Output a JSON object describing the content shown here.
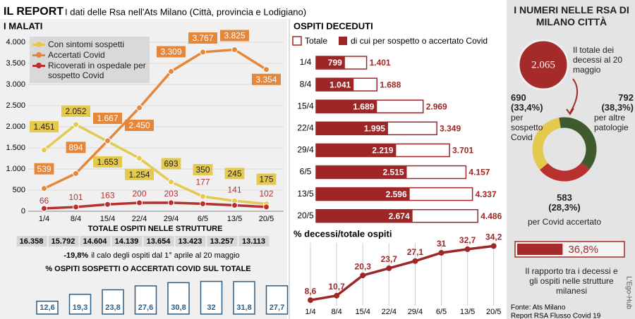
{
  "header": {
    "title": "IL REPORT",
    "subtitle": "I dati delle Rsa nell'Ats Milano (Città, provincia e Lodigiano)"
  },
  "chart_data": [
    {
      "type": "line",
      "title": "I MALATI",
      "categories": [
        "1/4",
        "8/4",
        "15/4",
        "22/4",
        "29/4",
        "6/5",
        "13/5",
        "20/5"
      ],
      "series": [
        {
          "name": "Con sintomi sospetti",
          "color": "#e3c94e",
          "values": [
            1451,
            2052,
            1653,
            1254,
            693,
            350,
            245,
            175
          ],
          "value_labels": [
            "1.451",
            "2.052",
            "1.653",
            "1.254",
            "693",
            "350",
            "245",
            "175"
          ]
        },
        {
          "name": "Accertati Covid",
          "color": "#e5873a",
          "values": [
            539,
            894,
            1667,
            2450,
            3309,
            3767,
            3825,
            3354
          ],
          "value_labels": [
            "539",
            "894",
            "1.667",
            "2.450",
            "3.309",
            "3.767",
            "3.825",
            "3.354"
          ]
        },
        {
          "name": "Ricoverati in ospedale per sospetto Covid",
          "color": "#b8312f",
          "values": [
            66,
            101,
            163,
            200,
            203,
            177,
            141,
            102
          ],
          "value_labels": [
            "66",
            "101",
            "163",
            "200",
            "203",
            "177",
            "141",
            "102"
          ]
        }
      ],
      "ylim": [
        0,
        4000
      ],
      "yticks": [
        0,
        500,
        {
          "value": 1000,
          "label": "1.000"
        },
        {
          "value": 1500,
          "label": "1.500"
        },
        {
          "value": 2000,
          "label": "2.000"
        },
        {
          "value": 2500,
          "label": "2.500"
        },
        {
          "value": 3000,
          "label": "3.000"
        },
        {
          "value": 3500,
          "label": "3.500"
        },
        {
          "value": 4000,
          "label": "4.000"
        }
      ],
      "grid": true
    },
    {
      "type": "table",
      "title": "TOTALE OSPITI NELLE STRUTTURE",
      "values": [
        16358,
        15792,
        14604,
        14139,
        13654,
        13423,
        13257,
        13113
      ],
      "value_labels": [
        "16.358",
        "15.792",
        "14.604",
        "14.139",
        "13.654",
        "13.423",
        "13.257",
        "13.113"
      ],
      "note_value": "-19,8%",
      "note": "il calo degli ospiti dal 1° aprile al 20 maggio"
    },
    {
      "type": "bar",
      "title": "% OSPITI SOSPETTI O ACCERTATI COVID SUL TOTALE",
      "color": "#2b5d86",
      "values": [
        12.6,
        19.3,
        23.8,
        27.6,
        30.8,
        32,
        31.8,
        27.7
      ],
      "value_labels": [
        "12,6",
        "19,3",
        "23,8",
        "27,6",
        "30,8",
        "32",
        "31,8",
        "27,7"
      ]
    },
    {
      "type": "hbar",
      "title": "OSPITI DECEDUTI",
      "categories": [
        "1/4",
        "8/4",
        "15/4",
        "22/4",
        "29/4",
        "6/5",
        "13/5",
        "20/5"
      ],
      "series": [
        {
          "name": "Totale",
          "color": "#9e2627",
          "values": [
            1401,
            1688,
            2969,
            3349,
            3701,
            4157,
            4337,
            4486
          ],
          "value_labels": [
            "1.401",
            "1.688",
            "2.969",
            "3.349",
            "3.701",
            "4.157",
            "4.337",
            "4.486"
          ]
        },
        {
          "name": "di cui per sospetto o accertato Covid",
          "color": "#9e2627",
          "values": [
            799,
            1041,
            1689,
            1995,
            2219,
            2515,
            2596,
            2674
          ],
          "value_labels": [
            "799",
            "1.041",
            "1.689",
            "1.995",
            "2.219",
            "2.515",
            "2.596",
            "2.674"
          ]
        }
      ]
    },
    {
      "type": "line",
      "title": "% decessi/totale ospiti",
      "color": "#9e2627",
      "categories": [
        "1/4",
        "8/4",
        "15/4",
        "22/4",
        "29/4",
        "6/5",
        "13/5",
        "20/5"
      ],
      "values": [
        8.6,
        10.7,
        20.3,
        23.7,
        27.1,
        31,
        32.7,
        34.2
      ],
      "value_labels": [
        "8,6",
        "10,7",
        "20,3",
        "23,7",
        "27,1",
        "31",
        "32,7",
        "34,2"
      ]
    },
    {
      "type": "pie",
      "categories": [
        "per sospetto Covid",
        "per altre patologie",
        "per Covid accertato"
      ],
      "values": [
        690,
        792,
        583
      ],
      "value_labels": [
        "690",
        "792",
        "583"
      ],
      "percent_labels": [
        "(33,4%)",
        "(38,3%)",
        "(28,3%)"
      ],
      "colors": [
        "#e3c94e",
        "#3f5a2e",
        "#b8312f"
      ]
    },
    {
      "type": "progress",
      "color": "#a52a2a",
      "values": [
        36.8
      ],
      "value_labels": [
        "36,8%"
      ],
      "caption": "Il rapporto tra i decessi e gli ospiti nelle strutture milanesi"
    }
  ],
  "sidebar": {
    "title": "I NUMERI NELLE RSA DI MILANO CITTÀ",
    "total": "2.065",
    "total_text": "Il totale dei decessi al 20 maggio",
    "source": [
      "Fonte: Ats Milano",
      "Report RSA Flusso Covid 19"
    ],
    "credit": "L'Ego-Hub"
  }
}
